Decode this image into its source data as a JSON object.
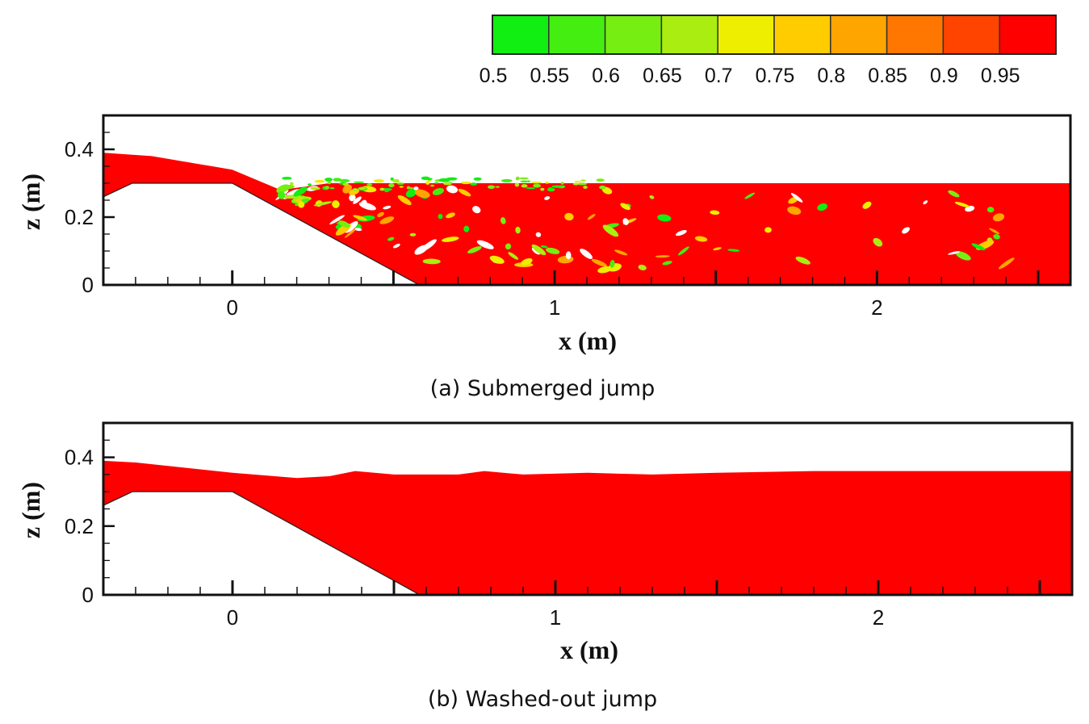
{
  "colorbar": {
    "ticks": [
      "0.5",
      "0.55",
      "0.6",
      "0.65",
      "0.7",
      "0.75",
      "0.8",
      "0.85",
      "0.9",
      "0.95"
    ],
    "colors": [
      "#11ee11",
      "#44ee11",
      "#77ee11",
      "#aaee11",
      "#eeee00",
      "#ffcc00",
      "#ffa500",
      "#ff7700",
      "#ff4400",
      "#ff0000"
    ]
  },
  "water_color": "#ff0000",
  "chart_data": [
    {
      "type": "area",
      "caption": "(a) Submerged jump",
      "xlabel": "x (m)",
      "ylabel": "z (m)",
      "xlim": [
        -0.4,
        2.6
      ],
      "ylim": [
        0,
        0.5
      ],
      "xticks": [
        "0",
        "1",
        "2"
      ],
      "xtick_values": [
        0,
        1,
        2
      ],
      "yticks": [
        "0",
        "0.2",
        "0.4"
      ],
      "ytick_values": [
        0,
        0.2,
        0.4
      ],
      "bed": {
        "x": [
          -0.4,
          -0.31,
          0,
          0.58,
          2.6
        ],
        "z": [
          0.26,
          0.3,
          0.3,
          0,
          0
        ]
      },
      "surface": {
        "x": [
          -0.4,
          -0.25,
          0,
          0.15,
          0.3,
          0.6,
          1.0,
          1.5,
          2.6
        ],
        "z": [
          0.39,
          0.38,
          0.34,
          0.28,
          0.3,
          0.3,
          0.3,
          0.3,
          0.3
        ]
      }
    },
    {
      "type": "area",
      "caption": "(b) Washed-out jump",
      "xlabel": "x (m)",
      "ylabel": "z (m)",
      "xlim": [
        -0.4,
        2.6
      ],
      "ylim": [
        0,
        0.5
      ],
      "xticks": [
        "0",
        "1",
        "2"
      ],
      "xtick_values": [
        0,
        1,
        2
      ],
      "yticks": [
        "0",
        "0.2",
        "0.4"
      ],
      "ytick_values": [
        0,
        0.2,
        0.4
      ],
      "bed": {
        "x": [
          -0.4,
          -0.31,
          0,
          0.58,
          2.6
        ],
        "z": [
          0.26,
          0.3,
          0.3,
          0,
          0
        ]
      },
      "surface": {
        "x": [
          -0.4,
          -0.3,
          -0.15,
          0.0,
          0.2,
          0.3,
          0.38,
          0.5,
          0.7,
          0.78,
          0.9,
          1.1,
          1.3,
          1.5,
          1.8,
          2.2,
          2.6
        ],
        "z": [
          0.39,
          0.385,
          0.37,
          0.355,
          0.34,
          0.345,
          0.36,
          0.35,
          0.35,
          0.36,
          0.35,
          0.355,
          0.35,
          0.355,
          0.36,
          0.36,
          0.36
        ]
      }
    }
  ]
}
